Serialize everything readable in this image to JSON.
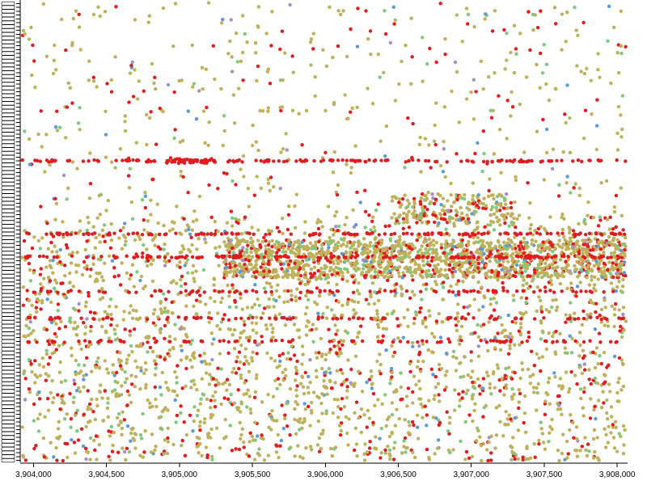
{
  "chart_data": {
    "type": "scatter",
    "title": "",
    "xlabel": "",
    "ylabel": "",
    "xlim": [
      3903920,
      3908060
    ],
    "x_ticks": [
      3904000,
      3904500,
      3905000,
      3905500,
      3906000,
      3906500,
      3907000,
      3907500,
      3908000
    ],
    "x_tick_labels": [
      "3,904,000",
      "3,904,500",
      "3,905,000",
      "3,905,500",
      "3,906,000",
      "3,906,500",
      "3,907,000",
      "3,907,500",
      "3,908,000"
    ],
    "y_axis": "categorical rows (labels too dense to read)",
    "y_row_count": 120,
    "grid": false,
    "legend": "none",
    "colors": {
      "red": "#e41a1c",
      "olive": "#bfb05a",
      "green": "#7fc97f",
      "blue": "#5b9bd5",
      "purple": "#a58fca"
    },
    "dense_row_bands": [
      {
        "row": 41,
        "color": "red",
        "density": "high"
      },
      {
        "row": 60,
        "color": "red",
        "density": "high"
      },
      {
        "row": 66,
        "color": "red",
        "density": "high"
      },
      {
        "row": 75,
        "color": "red",
        "density": "medium"
      },
      {
        "row": 82,
        "color": "red",
        "density": "medium"
      },
      {
        "row": 88,
        "color": "red",
        "density": "medium"
      }
    ],
    "seed": 7
  }
}
